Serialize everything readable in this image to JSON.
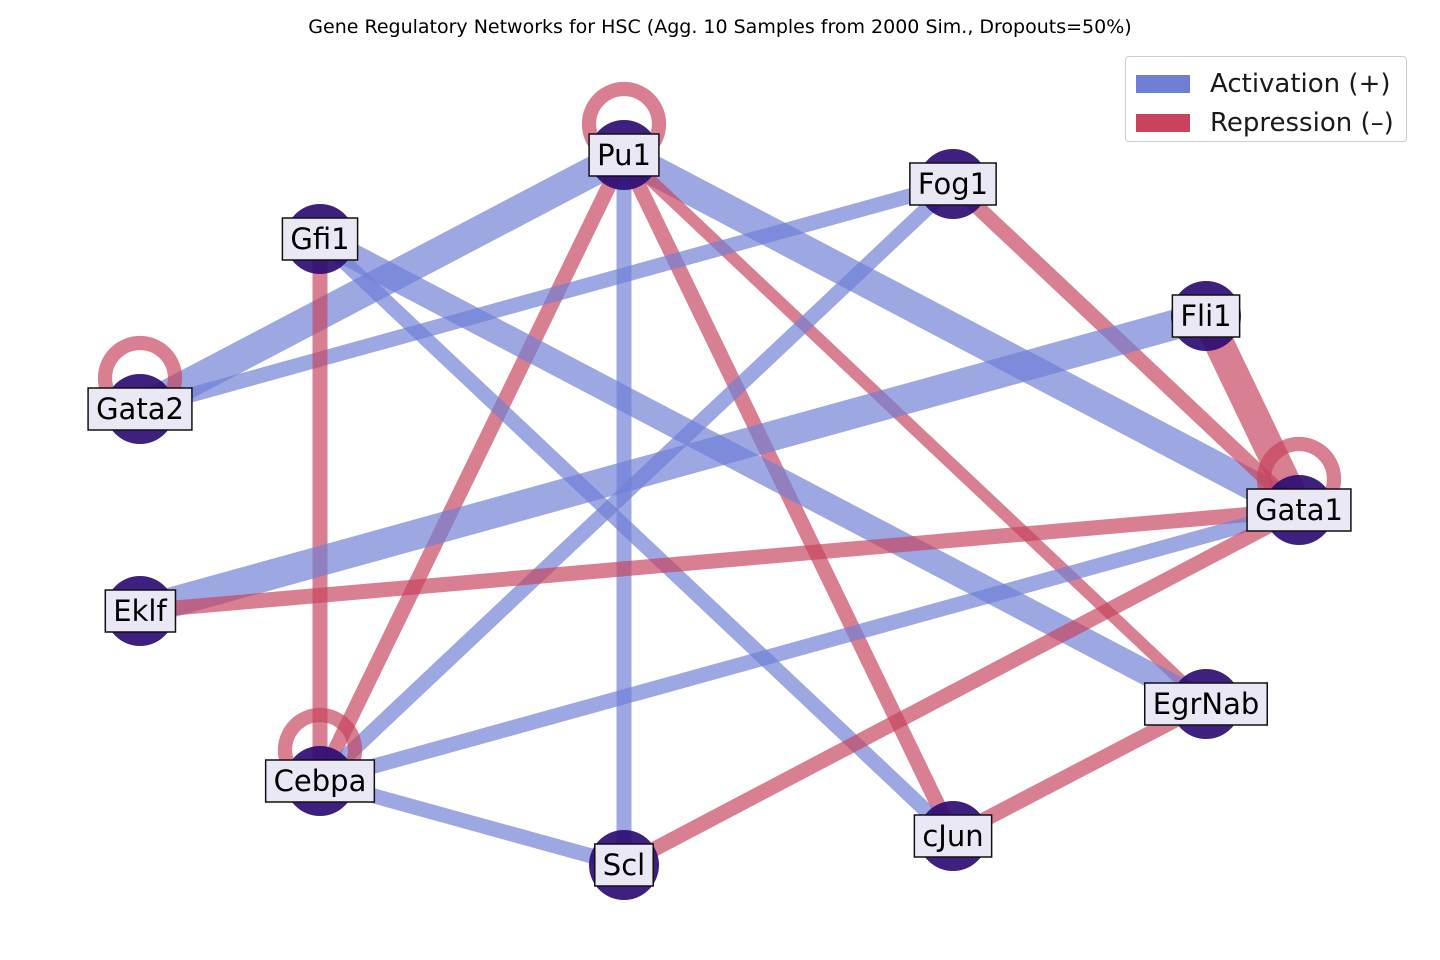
{
  "title": "Gene Regulatory Networks for HSC (Agg. 10 Samples from 2000 Sim., Dropouts=50%)",
  "colors": {
    "activation": "#6f7fd6",
    "repression": "#c7435e",
    "node_fill": "#2e0d74",
    "label_bg": "#eae8f4"
  },
  "legend": {
    "activation_label": "Activation (+)",
    "repression_label": "Repression (–)"
  },
  "nodes": [
    {
      "id": "Pu1",
      "label": "Pu1"
    },
    {
      "id": "Fog1",
      "label": "Fog1"
    },
    {
      "id": "Gfi1",
      "label": "Gfi1"
    },
    {
      "id": "Fli1",
      "label": "Fli1"
    },
    {
      "id": "Gata2",
      "label": "Gata2"
    },
    {
      "id": "Gata1",
      "label": "Gata1"
    },
    {
      "id": "Eklf",
      "label": "Eklf"
    },
    {
      "id": "EgrNab",
      "label": "EgrNab"
    },
    {
      "id": "Cebpa",
      "label": "Cebpa"
    },
    {
      "id": "cJun",
      "label": "cJun"
    },
    {
      "id": "Scl",
      "label": "Scl"
    }
  ],
  "edges": [
    {
      "source": "Pu1",
      "target": "Gata2",
      "type": "activation",
      "weight": 3
    },
    {
      "source": "Pu1",
      "target": "Gata1",
      "type": "activation",
      "weight": 3
    },
    {
      "source": "Pu1",
      "target": "Scl",
      "type": "activation",
      "weight": 1.5
    },
    {
      "source": "Pu1",
      "target": "Cebpa",
      "type": "repression",
      "weight": 1.5
    },
    {
      "source": "Pu1",
      "target": "cJun",
      "type": "repression",
      "weight": 1.5
    },
    {
      "source": "Pu1",
      "target": "EgrNab",
      "type": "repression",
      "weight": 1.2
    },
    {
      "source": "Fog1",
      "target": "Gata2",
      "type": "activation",
      "weight": 1.5
    },
    {
      "source": "Fog1",
      "target": "Cebpa",
      "type": "activation",
      "weight": 1.5
    },
    {
      "source": "Fog1",
      "target": "Gata1",
      "type": "repression",
      "weight": 1.5
    },
    {
      "source": "Gfi1",
      "target": "EgrNab",
      "type": "activation",
      "weight": 2.5
    },
    {
      "source": "Gfi1",
      "target": "cJun",
      "type": "activation",
      "weight": 1.5
    },
    {
      "source": "Gfi1",
      "target": "Cebpa",
      "type": "repression",
      "weight": 1.5
    },
    {
      "source": "Fli1",
      "target": "Eklf",
      "type": "activation",
      "weight": 3
    },
    {
      "source": "Fli1",
      "target": "Gata1",
      "type": "repression",
      "weight": 3
    },
    {
      "source": "Gata1",
      "target": "Eklf",
      "type": "repression",
      "weight": 1.5
    },
    {
      "source": "Gata1",
      "target": "Cebpa",
      "type": "activation",
      "weight": 1.5
    },
    {
      "source": "Gata1",
      "target": "Scl",
      "type": "repression",
      "weight": 1.5
    },
    {
      "source": "Cebpa",
      "target": "Scl",
      "type": "activation",
      "weight": 1.5
    },
    {
      "source": "EgrNab",
      "target": "cJun",
      "type": "repression",
      "weight": 1.5
    },
    {
      "source": "Pu1",
      "target": "Pu1",
      "type": "repression",
      "weight": 1.5
    },
    {
      "source": "Gata2",
      "target": "Gata2",
      "type": "repression",
      "weight": 1.5
    },
    {
      "source": "Gata1",
      "target": "Gata1",
      "type": "repression",
      "weight": 1.5
    },
    {
      "source": "Cebpa",
      "target": "Cebpa",
      "type": "repression",
      "weight": 1.5
    }
  ]
}
